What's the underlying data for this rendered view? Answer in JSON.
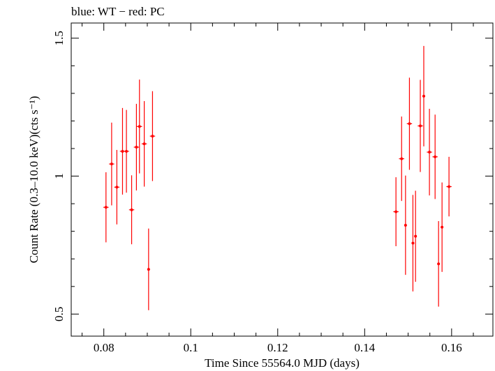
{
  "chart_data": {
    "type": "scatter",
    "title": "blue: WT − red: PC",
    "xlabel": "Time Since 55564.0 MJD (days)",
    "ylabel": "Count Rate (0.3–10.0 keV)(cts s⁻¹)",
    "xlim": [
      0.0725,
      0.1695
    ],
    "ylim": [
      0.42,
      1.555
    ],
    "x_ticks": [
      0.08,
      0.1,
      0.12,
      0.14,
      0.16
    ],
    "x_tick_labels": [
      "0.08",
      "0.1",
      "0.12",
      "0.14",
      "0.16"
    ],
    "y_ticks": [
      0.5,
      1,
      1.5
    ],
    "y_tick_labels": [
      "0.5",
      "1",
      "1.5"
    ],
    "grid": false,
    "colors": {
      "PC": "#ff0000",
      "WT": "#0000ff"
    },
    "series": [
      {
        "name": "PC",
        "color": "#ff0000",
        "points": [
          {
            "x": 0.0805,
            "y": 0.887,
            "xerr": 0.0006,
            "yerr": 0.127
          },
          {
            "x": 0.0818,
            "y": 1.044,
            "xerr": 0.0006,
            "yerr": 0.15
          },
          {
            "x": 0.083,
            "y": 0.96,
            "xerr": 0.0006,
            "yerr": 0.135
          },
          {
            "x": 0.0843,
            "y": 1.09,
            "xerr": 0.0006,
            "yerr": 0.157
          },
          {
            "x": 0.0852,
            "y": 1.09,
            "xerr": 0.0006,
            "yerr": 0.15
          },
          {
            "x": 0.0864,
            "y": 0.878,
            "xerr": 0.0006,
            "yerr": 0.125
          },
          {
            "x": 0.0875,
            "y": 1.105,
            "xerr": 0.0006,
            "yerr": 0.157
          },
          {
            "x": 0.0882,
            "y": 1.18,
            "xerr": 0.0006,
            "yerr": 0.17
          },
          {
            "x": 0.0893,
            "y": 1.117,
            "xerr": 0.0006,
            "yerr": 0.155
          },
          {
            "x": 0.0903,
            "y": 0.662,
            "xerr": 0.0003,
            "yerr": 0.148
          },
          {
            "x": 0.0912,
            "y": 1.145,
            "xerr": 0.0006,
            "yerr": 0.163
          },
          {
            "x": 0.1472,
            "y": 0.871,
            "xerr": 0.0006,
            "yerr": 0.125
          },
          {
            "x": 0.1485,
            "y": 1.063,
            "xerr": 0.0006,
            "yerr": 0.153
          },
          {
            "x": 0.1494,
            "y": 0.822,
            "xerr": 0.0003,
            "yerr": 0.18
          },
          {
            "x": 0.1503,
            "y": 1.19,
            "xerr": 0.0006,
            "yerr": 0.167
          },
          {
            "x": 0.1511,
            "y": 0.757,
            "xerr": 0.0003,
            "yerr": 0.175
          },
          {
            "x": 0.1517,
            "y": 0.782,
            "xerr": 0.0003,
            "yerr": 0.165
          },
          {
            "x": 0.1528,
            "y": 1.182,
            "xerr": 0.0006,
            "yerr": 0.167
          },
          {
            "x": 0.1536,
            "y": 1.29,
            "xerr": 0.0003,
            "yerr": 0.182
          },
          {
            "x": 0.1549,
            "y": 1.087,
            "xerr": 0.0006,
            "yerr": 0.157
          },
          {
            "x": 0.1562,
            "y": 1.07,
            "xerr": 0.0006,
            "yerr": 0.153
          },
          {
            "x": 0.157,
            "y": 0.682,
            "xerr": 0.0003,
            "yerr": 0.155
          },
          {
            "x": 0.1578,
            "y": 0.815,
            "xerr": 0.0003,
            "yerr": 0.162
          },
          {
            "x": 0.1594,
            "y": 0.962,
            "xerr": 0.0006,
            "yerr": 0.108
          }
        ]
      }
    ]
  }
}
